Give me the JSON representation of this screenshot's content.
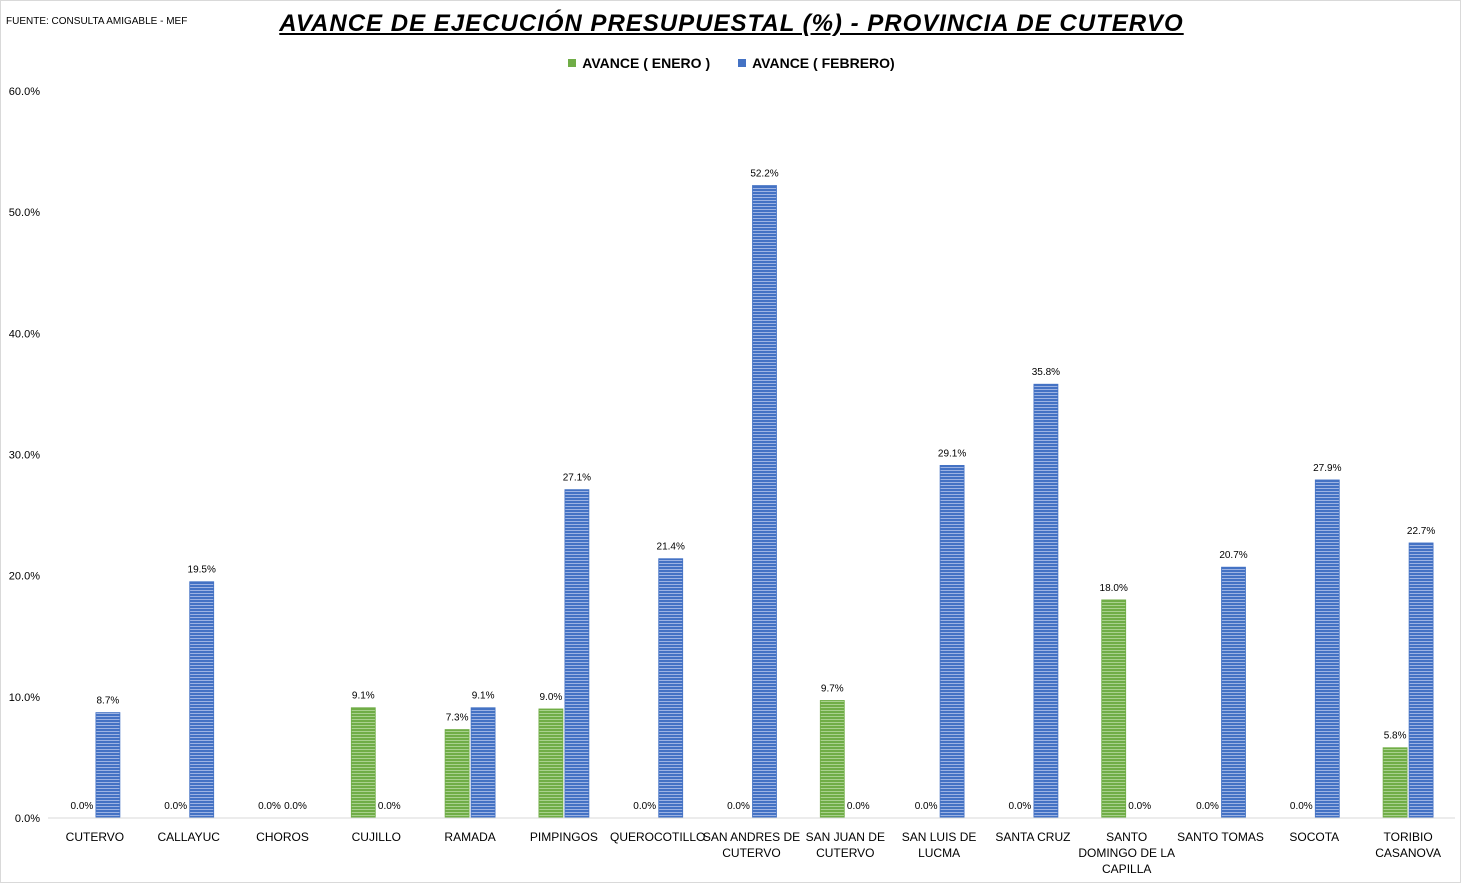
{
  "source_note": "FUENTE: CONSULTA AMIGABLE - MEF",
  "colors": {
    "enero": "#70ad47",
    "febrero": "#4472c4"
  },
  "chart_data": {
    "type": "bar",
    "title": "AVANCE DE EJECUCIÓN PRESUPUESTAL (%) - PROVINCIA DE CUTERVO",
    "xlabel": "",
    "ylabel": "",
    "ylim": [
      0,
      60
    ],
    "yticks": [
      "0.0%",
      "10.0%",
      "20.0%",
      "30.0%",
      "40.0%",
      "50.0%",
      "60.0%"
    ],
    "grid": false,
    "legend_position": "top-center",
    "categories": [
      [
        "CUTERVO"
      ],
      [
        "CALLAYUC"
      ],
      [
        "CHOROS"
      ],
      [
        "CUJILLO"
      ],
      [
        "RAMADA"
      ],
      [
        "PIMPINGOS"
      ],
      [
        "QUEROCOTILLO"
      ],
      [
        "SAN ANDRES DE",
        "CUTERVO"
      ],
      [
        "SAN JUAN DE",
        "CUTERVO"
      ],
      [
        "SAN LUIS DE",
        "LUCMA"
      ],
      [
        "SANTA CRUZ"
      ],
      [
        "SANTO",
        "DOMINGO DE LA",
        "CAPILLA"
      ],
      [
        "SANTO TOMAS"
      ],
      [
        "SOCOTA"
      ],
      [
        "TORIBIO",
        "CASANOVA"
      ]
    ],
    "series": [
      {
        "name": "AVANCE ( ENERO )",
        "values": [
          0.0,
          0.0,
          0.0,
          9.1,
          7.3,
          9.0,
          0.0,
          0.0,
          9.7,
          0.0,
          0.0,
          18.0,
          0.0,
          0.0,
          5.8
        ],
        "labels": [
          "0.0%",
          "0.0%",
          "0.0%",
          "9.1%",
          "7.3%",
          "9.0%",
          "0.0%",
          "0.0%",
          "9.7%",
          "0.0%",
          "0.0%",
          "18.0%",
          "0.0%",
          "0.0%",
          "5.8%"
        ]
      },
      {
        "name": "AVANCE ( FEBRERO)",
        "values": [
          8.7,
          19.5,
          0.0,
          0.0,
          9.1,
          27.1,
          21.4,
          52.2,
          0.0,
          29.1,
          35.8,
          0.0,
          20.7,
          27.9,
          22.7
        ],
        "labels": [
          "8.7%",
          "19.5%",
          "0.0%",
          "0.0%",
          "9.1%",
          "27.1%",
          "21.4%",
          "52.2%",
          "0.0%",
          "29.1%",
          "35.8%",
          "0.0%",
          "20.7%",
          "27.9%",
          "22.7%"
        ]
      }
    ]
  }
}
